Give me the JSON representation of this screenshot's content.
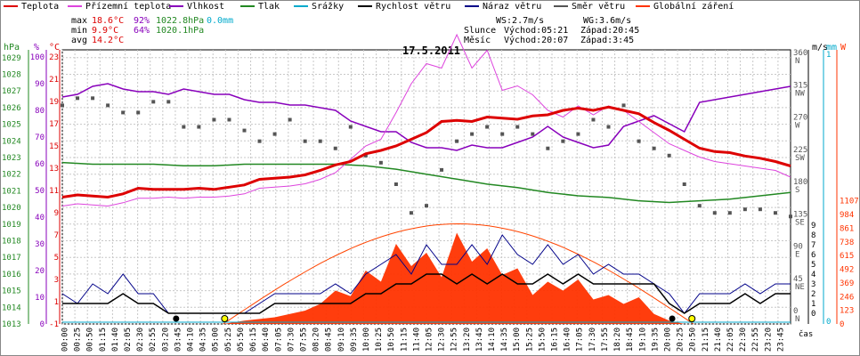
{
  "legend": [
    {
      "name": "Teplota",
      "color": "#dd0000"
    },
    {
      "name": "Přízemní teplota",
      "color": "#dd44dd"
    },
    {
      "name": "Vlhkost",
      "color": "#8800bb"
    },
    {
      "name": "Tlak",
      "color": "#228822"
    },
    {
      "name": "Srážky",
      "color": "#00aacc"
    },
    {
      "name": "Rychlost větru",
      "color": "#000000"
    },
    {
      "name": "Náraz větru",
      "color": "#000088"
    },
    {
      "name": "Směr větru",
      "color": "#555555"
    },
    {
      "name": "Globální záření",
      "color": "#ff3300"
    }
  ],
  "stats": {
    "max": {
      "label": "max",
      "temp": "18.6°C",
      "hum": "92%",
      "press": "1022.8hPa",
      "rain": "0.0mm"
    },
    "min": {
      "label": "min",
      "temp": "9.9°C",
      "hum": "64%",
      "press": "1020.1hPa"
    },
    "avg": {
      "label": "avg",
      "temp": "14.2°C"
    }
  },
  "wind_info": {
    "ws": "WS:2.7m/s",
    "wg": "WG:3.6m/s"
  },
  "sun": {
    "label": "Slunce",
    "rise": "Východ:05:21",
    "set": "Západ:20:45"
  },
  "moon": {
    "label": "Měsíc",
    "rise": "Východ:20:07",
    "set": "Západ:3:45"
  },
  "chart_data": {
    "type": "line",
    "title": "17.5.2011",
    "xlabel": "čas",
    "axis_units": {
      "press": "hPa",
      "hum": "%",
      "temp": "°C",
      "wind": "m/s",
      "rain": "mm",
      "rad": "W"
    },
    "xlim": [
      0,
      24
    ],
    "x_ticks": [
      "00:00",
      "00:25",
      "00:50",
      "01:15",
      "01:40",
      "02:05",
      "02:30",
      "02:55",
      "03:20",
      "03:45",
      "04:10",
      "04:35",
      "05:00",
      "05:25",
      "05:50",
      "06:15",
      "06:40",
      "07:05",
      "07:30",
      "07:55",
      "08:20",
      "08:45",
      "09:10",
      "09:35",
      "10:00",
      "10:25",
      "10:50",
      "11:15",
      "11:40",
      "12:05",
      "12:30",
      "12:55",
      "13:20",
      "13:45",
      "14:10",
      "14:35",
      "15:00",
      "15:25",
      "15:50",
      "16:15",
      "16:40",
      "17:05",
      "17:30",
      "17:55",
      "18:20",
      "18:45",
      "19:10",
      "19:35",
      "20:00",
      "20:25",
      "20:50",
      "21:15",
      "21:40",
      "22:05",
      "22:30",
      "22:55",
      "23:20",
      "23:45"
    ],
    "press_ticks": [
      "1013",
      "1014",
      "1015",
      "1016",
      "1017",
      "1018",
      "1019",
      "1020",
      "1021",
      "1022",
      "1023",
      "1024",
      "1025",
      "1026",
      "1027",
      "1028",
      "1029"
    ],
    "hum_ticks": [
      "0",
      "10",
      "20",
      "30",
      "40",
      "50",
      "60",
      "70",
      "80",
      "90",
      "100"
    ],
    "temp_ticks": [
      "-1",
      "1",
      "3",
      "5",
      "7",
      "9",
      "11",
      "13",
      "15",
      "17",
      "19",
      "21",
      "23"
    ],
    "dir_ticks": [
      "0",
      "45",
      "90",
      "135",
      "180",
      "225",
      "270",
      "315",
      "360"
    ],
    "dir_labels": [
      "N",
      "NE",
      "E",
      "SE",
      "S",
      "SW",
      "W",
      "NW",
      "N"
    ],
    "wind_ticks": [
      "0",
      "1",
      "2",
      "3",
      "4",
      "5",
      "6",
      "7",
      "8",
      "9"
    ],
    "rain_ticks": [
      "0",
      "1"
    ],
    "rad_ticks": [
      "0",
      "123",
      "246",
      "369",
      "492",
      "615",
      "738",
      "861",
      "984",
      "1107"
    ],
    "series": [
      {
        "name": "Teplota",
        "unit": "°C",
        "x": [
          0,
          0.5,
          1,
          1.5,
          2,
          2.5,
          3,
          3.5,
          4,
          4.5,
          5,
          5.5,
          6,
          6.5,
          7,
          7.5,
          8,
          8.5,
          9,
          9.5,
          10,
          10.5,
          11,
          11.5,
          12,
          12.5,
          13,
          13.5,
          14,
          14.5,
          15,
          15.5,
          16,
          16.5,
          17,
          17.5,
          18,
          18.5,
          19,
          19.5,
          20,
          20.5,
          21,
          21.5,
          22,
          22.5,
          23,
          23.5,
          24
        ],
        "y": [
          10.4,
          10.6,
          10.5,
          10.4,
          10.7,
          11.2,
          11.1,
          11.1,
          11.1,
          11.2,
          11.1,
          11.3,
          11.5,
          12.0,
          12.1,
          12.2,
          12.4,
          12.8,
          13.3,
          13.6,
          14.3,
          14.6,
          15.0,
          15.6,
          16.2,
          17.2,
          17.3,
          17.2,
          17.6,
          17.5,
          17.4,
          17.7,
          17.8,
          18.2,
          18.4,
          18.2,
          18.5,
          18.2,
          17.9,
          17.1,
          16.4,
          15.6,
          14.8,
          14.5,
          14.4,
          14.1,
          13.9,
          13.6,
          13.2
        ]
      },
      {
        "name": "Přízemní teplota",
        "unit": "°C",
        "x": [
          0,
          0.5,
          1,
          1.5,
          2,
          2.5,
          3,
          3.5,
          4,
          4.5,
          5,
          5.5,
          6,
          6.5,
          7,
          7.5,
          8,
          8.5,
          9,
          9.5,
          10,
          10.5,
          11,
          11.5,
          12,
          12.5,
          13,
          13.5,
          14,
          14.5,
          15,
          15.5,
          16,
          16.5,
          17,
          17.5,
          18,
          18.5,
          19,
          19.5,
          20,
          20.5,
          21,
          21.5,
          22,
          22.5,
          23,
          23.5,
          24
        ],
        "y": [
          9.6,
          9.8,
          9.7,
          9.6,
          9.9,
          10.3,
          10.3,
          10.4,
          10.3,
          10.4,
          10.4,
          10.5,
          10.7,
          11.2,
          11.3,
          11.4,
          11.6,
          12.0,
          12.6,
          13.8,
          15.0,
          15.6,
          18.0,
          20.6,
          22.4,
          22.0,
          25.0,
          22.0,
          23.6,
          20.0,
          20.4,
          19.6,
          18.2,
          17.6,
          18.6,
          17.8,
          18.6,
          18.2,
          17.2,
          16.2,
          15.2,
          14.6,
          14.0,
          13.6,
          13.4,
          13.2,
          13.0,
          12.8,
          12.2
        ]
      },
      {
        "name": "Vlhkost",
        "unit": "%",
        "x": [
          0,
          0.5,
          1,
          1.5,
          2,
          2.5,
          3,
          3.5,
          4,
          4.5,
          5,
          5.5,
          6,
          6.5,
          7,
          7.5,
          8,
          8.5,
          9,
          9.5,
          10,
          10.5,
          11,
          11.5,
          12,
          12.5,
          13,
          13.5,
          14,
          14.5,
          15,
          15.5,
          16,
          16.5,
          17,
          17.5,
          18,
          18.5,
          19,
          19.5,
          20,
          20.5,
          21,
          21.5,
          22,
          22.5,
          23,
          23.5,
          24
        ],
        "y": [
          85,
          86,
          89,
          90,
          88,
          87,
          87,
          86,
          88,
          87,
          86,
          86,
          84,
          83,
          83,
          82,
          82,
          81,
          80,
          76,
          74,
          72,
          72,
          68,
          66,
          66,
          65,
          67,
          66,
          66,
          68,
          70,
          74,
          70,
          68,
          66,
          67,
          74,
          76,
          78,
          75,
          72,
          83,
          84,
          85,
          86,
          87,
          88,
          89
        ]
      },
      {
        "name": "Tlak",
        "unit": "hPa",
        "x": [
          0,
          1,
          2,
          3,
          4,
          5,
          6,
          7,
          8,
          9,
          10,
          11,
          12,
          13,
          14,
          15,
          16,
          17,
          18,
          19,
          20,
          21,
          22,
          23,
          24
        ],
        "y": [
          1022.7,
          1022.6,
          1022.6,
          1022.6,
          1022.5,
          1022.5,
          1022.6,
          1022.6,
          1022.6,
          1022.6,
          1022.5,
          1022.3,
          1022.0,
          1021.7,
          1021.4,
          1021.2,
          1020.9,
          1020.7,
          1020.6,
          1020.4,
          1020.3,
          1020.4,
          1020.5,
          1020.7,
          1020.9
        ]
      },
      {
        "name": "Srážky",
        "unit": "mm",
        "x": [
          0,
          24
        ],
        "y": [
          0.0,
          0.0
        ]
      },
      {
        "name": "Rychlost větru",
        "unit": "m/s",
        "x": [
          0,
          0.5,
          1,
          1.5,
          2,
          2.5,
          3,
          3.5,
          4,
          4.5,
          5,
          5.5,
          6,
          6.5,
          7,
          7.5,
          8,
          8.5,
          9,
          9.5,
          10,
          10.5,
          11,
          11.5,
          12,
          12.5,
          13,
          13.5,
          14,
          14.5,
          15,
          15.5,
          16,
          16.5,
          17,
          17.5,
          18,
          18.5,
          19,
          19.5,
          20,
          20.5,
          21,
          21.5,
          22,
          22.5,
          23,
          23.5,
          24
        ],
        "y": [
          1,
          1,
          1,
          1,
          2,
          1,
          1,
          0,
          0,
          0,
          0,
          0,
          0,
          0,
          1,
          1,
          1,
          1,
          1,
          1,
          2,
          2,
          3,
          3,
          4,
          4,
          3,
          4,
          3,
          4,
          3,
          3,
          4,
          3,
          4,
          3,
          3,
          3,
          3,
          3,
          1,
          0,
          1,
          1,
          1,
          2,
          1,
          2,
          2
        ]
      },
      {
        "name": "Náraz větru",
        "unit": "m/s",
        "x": [
          0,
          0.5,
          1,
          1.5,
          2,
          2.5,
          3,
          3.5,
          4,
          4.5,
          5,
          5.5,
          6,
          6.5,
          7,
          7.5,
          8,
          8.5,
          9,
          9.5,
          10,
          10.5,
          11,
          11.5,
          12,
          12.5,
          13,
          13.5,
          14,
          14.5,
          15,
          15.5,
          16,
          16.5,
          17,
          17.5,
          18,
          18.5,
          19,
          19.5,
          20,
          20.5,
          21,
          21.5,
          22,
          22.5,
          23,
          23.5,
          24
        ],
        "y": [
          2,
          1,
          3,
          2,
          4,
          2,
          2,
          0,
          0,
          0,
          0,
          0,
          0,
          1,
          2,
          2,
          2,
          2,
          3,
          2,
          4,
          5,
          6,
          4,
          7,
          5,
          5,
          7,
          5,
          8,
          6,
          5,
          7,
          5,
          6,
          4,
          5,
          4,
          4,
          3,
          2,
          0,
          2,
          2,
          2,
          3,
          2,
          3,
          3
        ]
      },
      {
        "name": "Globální záření",
        "unit": "W",
        "x": [
          5.3,
          6,
          7,
          8,
          8.5,
          9,
          9.5,
          10,
          10.5,
          11,
          11.5,
          12,
          12.5,
          13,
          13.5,
          14,
          14.5,
          15,
          15.5,
          16,
          16.5,
          17,
          17.5,
          18,
          18.5,
          19,
          19.5,
          20,
          20.5
        ],
        "y": [
          0,
          30,
          60,
          120,
          180,
          300,
          250,
          480,
          380,
          720,
          520,
          640,
          420,
          820,
          560,
          680,
          440,
          500,
          260,
          380,
          300,
          400,
          220,
          260,
          180,
          240,
          90,
          30,
          0
        ]
      }
    ],
    "wind_direction": {
      "name": "Směr větru",
      "unit": "°",
      "x": [
        0,
        0.5,
        1,
        1.5,
        2,
        2.5,
        3,
        3.5,
        4,
        4.5,
        5,
        5.5,
        6,
        6.5,
        7,
        7.5,
        8,
        8.5,
        9,
        9.5,
        10,
        10.5,
        11,
        11.5,
        12,
        12.5,
        13,
        13.5,
        14,
        14.5,
        15,
        15.5,
        16,
        16.5,
        17,
        17.5,
        18,
        18.5,
        19,
        19.5,
        20,
        20.5,
        21,
        21.5,
        22,
        22.5,
        23,
        23.5,
        24
      ],
      "y": [
        290,
        300,
        300,
        290,
        280,
        280,
        295,
        295,
        260,
        260,
        270,
        270,
        255,
        240,
        250,
        270,
        240,
        240,
        230,
        260,
        220,
        210,
        180,
        140,
        150,
        200,
        240,
        250,
        260,
        250,
        260,
        250,
        230,
        240,
        250,
        270,
        260,
        290,
        240,
        230,
        220,
        180,
        150,
        140,
        140,
        145,
        145,
        140,
        135
      ]
    }
  }
}
